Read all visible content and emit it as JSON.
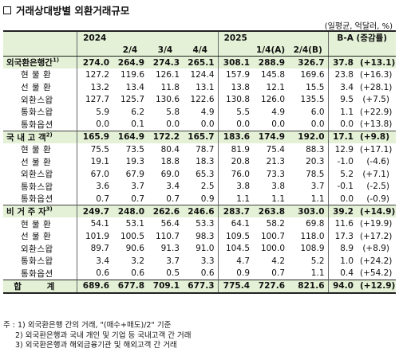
{
  "title": "거래상대방별 외환거래규모",
  "unit": "(일평균, 억달러, %)",
  "header": {
    "y2024": "2024",
    "y2025": "2025",
    "ba": "B-A (증감률)",
    "q2": "2/4",
    "q3": "3/4",
    "q4": "4/4",
    "q1a": "1/4(A)",
    "q2b": "2/4(B)"
  },
  "rows": [
    {
      "kind": "cat",
      "label": "외국환은행간",
      "sup": "1)",
      "vals": [
        "274.0",
        "264.9",
        "274.3",
        "265.1",
        "308.1",
        "288.9",
        "326.7",
        "37.8",
        "(+13.1)"
      ]
    },
    {
      "kind": "sub",
      "label": "현 물 환",
      "vals": [
        "127.2",
        "119.6",
        "126.1",
        "124.4",
        "157.9",
        "145.8",
        "169.6",
        "23.8",
        "(+16.3)"
      ]
    },
    {
      "kind": "sub",
      "label": "선 물 환",
      "vals": [
        "13.2",
        "13.4",
        "11.8",
        "13.1",
        "13.8",
        "12.1",
        "15.5",
        "3.4",
        "(+28.1)"
      ]
    },
    {
      "kind": "sub",
      "label": "외환스왑",
      "vals": [
        "127.7",
        "125.7",
        "130.6",
        "122.6",
        "130.8",
        "126.0",
        "135.5",
        "9.5",
        "(+7.5)"
      ]
    },
    {
      "kind": "sub",
      "label": "통화스왑",
      "vals": [
        "5.9",
        "6.2",
        "5.8",
        "4.9",
        "5.5",
        "4.9",
        "6.0",
        "1.1",
        "(+22.9)"
      ]
    },
    {
      "kind": "sub",
      "label": "통화옵션",
      "vals": [
        "0.0",
        "0.1",
        "0.0",
        "0.0",
        "0.0",
        "0.0",
        "0.0",
        "0.0",
        "(+13.8)"
      ]
    },
    {
      "kind": "cat",
      "label": "국 내 고 객",
      "sup": "2)",
      "vals": [
        "165.9",
        "164.9",
        "172.2",
        "165.7",
        "183.6",
        "174.9",
        "192.0",
        "17.1",
        "(+9.8)"
      ]
    },
    {
      "kind": "sub",
      "label": "현 물 환",
      "vals": [
        "75.5",
        "73.5",
        "80.4",
        "78.7",
        "81.9",
        "75.4",
        "88.3",
        "12.9",
        "(+17.1)"
      ]
    },
    {
      "kind": "sub",
      "label": "선 물 환",
      "vals": [
        "19.1",
        "19.3",
        "18.8",
        "18.3",
        "20.8",
        "21.3",
        "20.3",
        "-1.0",
        "(-4.6)"
      ]
    },
    {
      "kind": "sub",
      "label": "외환스왑",
      "vals": [
        "67.0",
        "67.9",
        "69.0",
        "65.3",
        "76.0",
        "73.3",
        "78.5",
        "5.2",
        "(+7.1)"
      ]
    },
    {
      "kind": "sub",
      "label": "통화스왑",
      "vals": [
        "3.6",
        "3.7",
        "3.4",
        "2.5",
        "3.8",
        "3.8",
        "3.7",
        "-0.1",
        "(-2.5)"
      ]
    },
    {
      "kind": "sub",
      "label": "통화옵션",
      "vals": [
        "0.7",
        "0.7",
        "0.7",
        "0.9",
        "1.1",
        "1.1",
        "1.1",
        "0.0",
        "(-0.9)"
      ]
    },
    {
      "kind": "cat",
      "label": "비 거 주 자",
      "sup": "3)",
      "vals": [
        "249.7",
        "248.0",
        "262.6",
        "246.6",
        "283.7",
        "263.8",
        "303.0",
        "39.2",
        "(+14.9)"
      ]
    },
    {
      "kind": "sub",
      "label": "현 물 환",
      "vals": [
        "54.1",
        "53.1",
        "56.4",
        "53.3",
        "64.1",
        "58.2",
        "69.8",
        "11.6",
        "(+19.9)"
      ]
    },
    {
      "kind": "sub",
      "label": "선 물 환",
      "vals": [
        "101.9",
        "100.5",
        "110.7",
        "98.3",
        "109.5",
        "100.7",
        "118.0",
        "17.3",
        "(+17.2)"
      ]
    },
    {
      "kind": "sub",
      "label": "외환스왑",
      "vals": [
        "89.7",
        "90.6",
        "91.3",
        "91.0",
        "104.5",
        "100.0",
        "108.9",
        "8.9",
        "(+8.9)"
      ]
    },
    {
      "kind": "sub",
      "label": "통화스왑",
      "vals": [
        "3.4",
        "3.2",
        "3.7",
        "3.3",
        "4.7",
        "4.2",
        "5.2",
        "1.0",
        "(+24.2)"
      ]
    },
    {
      "kind": "sub",
      "label": "통화옵션",
      "vals": [
        "0.6",
        "0.6",
        "0.5",
        "0.6",
        "0.9",
        "0.7",
        "1.1",
        "0.4",
        "(+54.2)"
      ]
    },
    {
      "kind": "total",
      "label": "합 계",
      "vals": [
        "689.6",
        "677.8",
        "709.1",
        "677.3",
        "775.4",
        "727.6",
        "821.6",
        "94.0",
        "(+12.9)"
      ]
    }
  ],
  "notes": [
    "주 : 1) 외국환은행 간의 거래, \"(매수+매도)/2\" 기준",
    "2) 외국환은행과 국내 개인 및 기업 등 국내고객 간 거래",
    "3) 외국환은행과 해외금융기관 및 해외고객 간 거래"
  ]
}
